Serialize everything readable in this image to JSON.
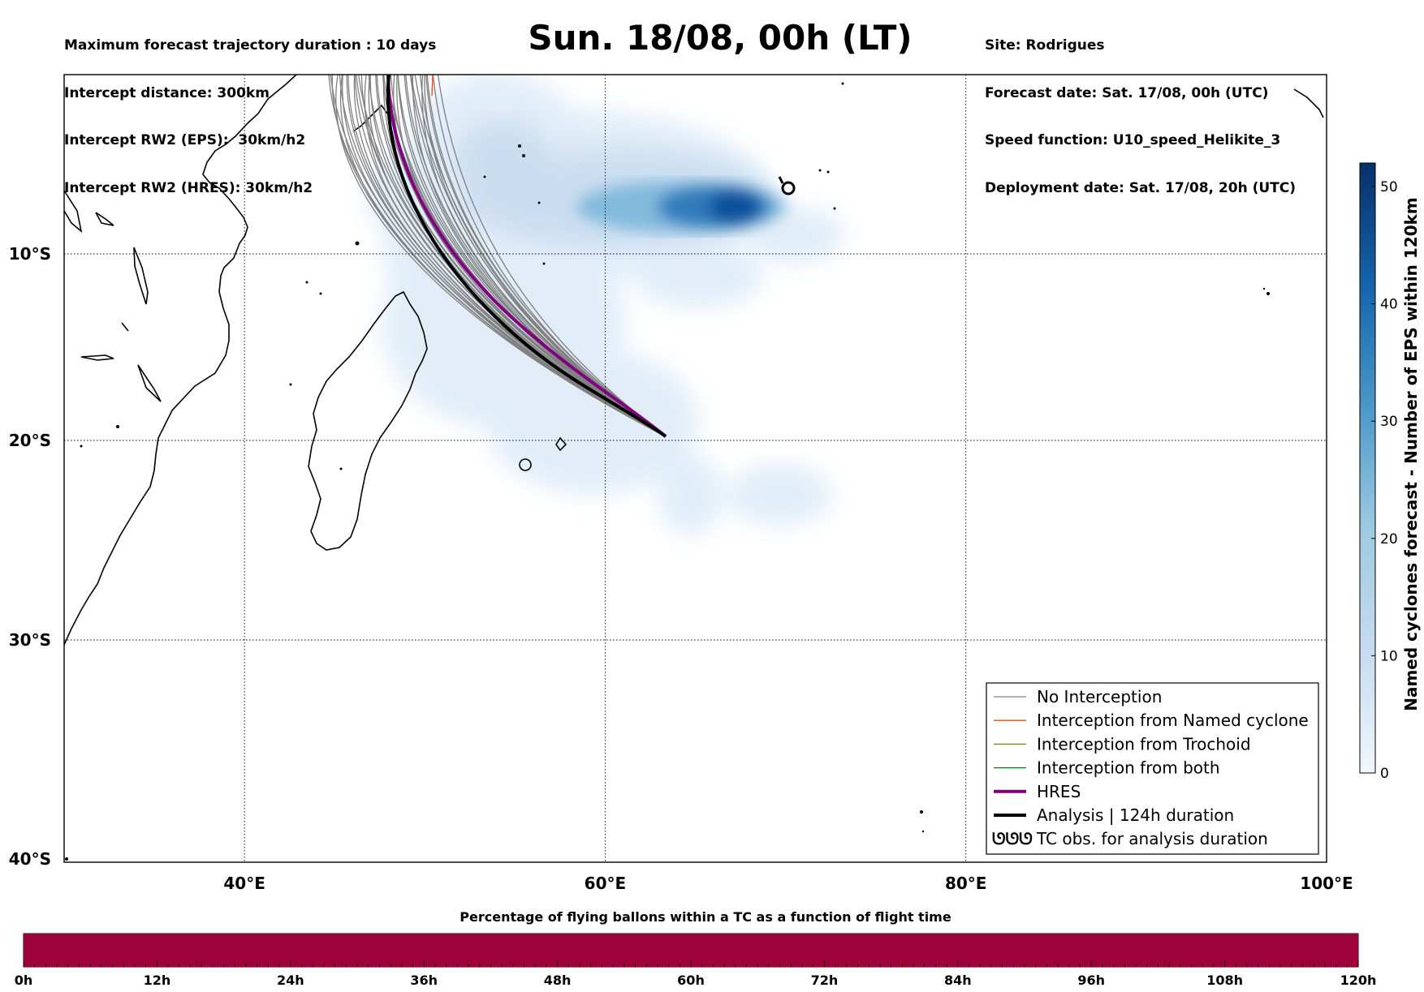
{
  "header_left": [
    "Maximum forecast trajectory duration : 10 days",
    "Intercept distance: 300km",
    "Intercept RW2 (EPS):  30km/h2",
    "Intercept RW2 (HRES): 30km/h2"
  ],
  "header_right": [
    "Site: Rodrigues",
    "Forecast date: Sat. 17/08, 00h (UTC)",
    "Speed function: U10_speed_Helikite_3",
    "Deployment date: Sat. 17/08, 20h (UTC)"
  ],
  "title": "Sun. 18/08, 00h (LT)",
  "map": {
    "lat_labels": [
      "10°S",
      "20°S",
      "30°S",
      "40°S"
    ],
    "lon_labels": [
      "40°E",
      "60°E",
      "80°E",
      "100°E"
    ]
  },
  "legend": {
    "items": [
      {
        "label": "No Interception",
        "color": "#808080"
      },
      {
        "label": "Interception from Named cyclone",
        "color": "#ff4500"
      },
      {
        "label": "Interception from Trochoid",
        "color": "#808000"
      },
      {
        "label": "Interception from both",
        "color": "#008000"
      },
      {
        "label": "HRES",
        "color": "#800080"
      },
      {
        "label": "Analysis | 124h duration",
        "color": "#000000"
      },
      {
        "label": "TC obs. for analysis duration",
        "color": "#000000"
      }
    ],
    "tc_symbol": "ᘎᘎᘎ"
  },
  "colorbar": {
    "label": "Named cyclones forecast - Number of EPS within 120km",
    "ticks": [
      "0",
      "10",
      "20",
      "30",
      "40",
      "50"
    ],
    "tick_values": [
      0,
      10,
      20,
      30,
      40,
      50
    ],
    "max": 52,
    "color_low": "#deebf7",
    "color_high": "#08306b"
  },
  "progress_bar": {
    "title": "Percentage of flying ballons within a TC as a function of flight time",
    "ticks": [
      "0h",
      "12h",
      "24h",
      "36h",
      "48h",
      "60h",
      "72h",
      "84h",
      "96h",
      "108h",
      "120h"
    ],
    "fill_color": "#9e003a",
    "fill_fraction": 1.0
  }
}
